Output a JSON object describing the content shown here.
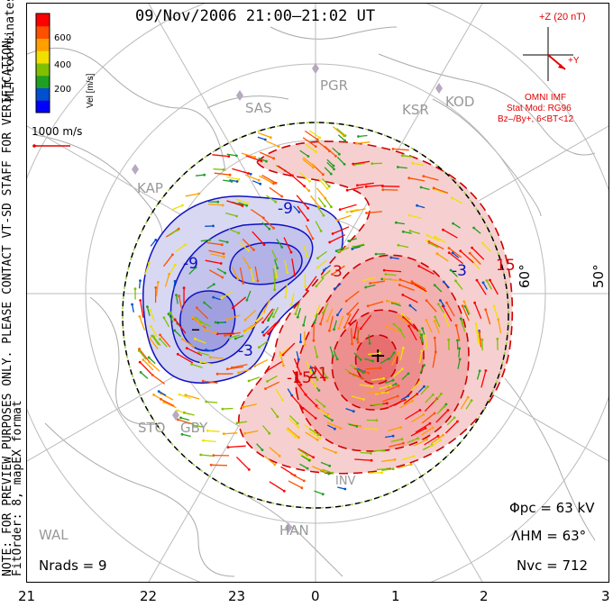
{
  "title": "09/Nov/2006 21:00–21:02 UT",
  "colorbar": {
    "label": "Vel [m/s]",
    "ticks": [
      "600",
      "400",
      "200"
    ],
    "colors": [
      "#0000ff",
      "#0050d0",
      "#20a020",
      "#80c000",
      "#f0e000",
      "#ffa000",
      "#ff5000",
      "#ff0000"
    ]
  },
  "coordinates_label": "MLT coordinates",
  "scale_vector": "1000 m/s",
  "imf": {
    "z_label": "+Z (20 nT)",
    "y_label": "+Y",
    "source": "OMNI IMF",
    "model": "Stat Mod: RG96",
    "condition": "Bz–/By+, 6<BT<12"
  },
  "notes": {
    "preview": "NOTE: FOR PREVIEW PURPOSES ONLY. PLEASE CONTACT VT-SD STAFF FOR VERIFICATION.",
    "fit": "FitOrder: 8, mapEX format"
  },
  "stations": [
    "PGR",
    "SAS",
    "KSR",
    "KOD",
    "KAP",
    "STO",
    "GBY",
    "WAL",
    "HAN",
    "INV"
  ],
  "latitude_labels": [
    "60°",
    "50°"
  ],
  "contour_labels": [
    "-9",
    "-9",
    "-3",
    "3",
    "-15",
    "21",
    "15",
    "-3"
  ],
  "stats": {
    "phi_pc": "Φpc = 63 kV",
    "lambda_hm": "ΛHM = 63°",
    "n_vc": "Nvc = 712",
    "n_rads": "Nrads = 9"
  },
  "mlt_axis": [
    "21",
    "22",
    "23",
    "0",
    "1",
    "2",
    "3"
  ],
  "potential_colors": {
    "negative": "#1010c0",
    "positive": "#d00000"
  }
}
